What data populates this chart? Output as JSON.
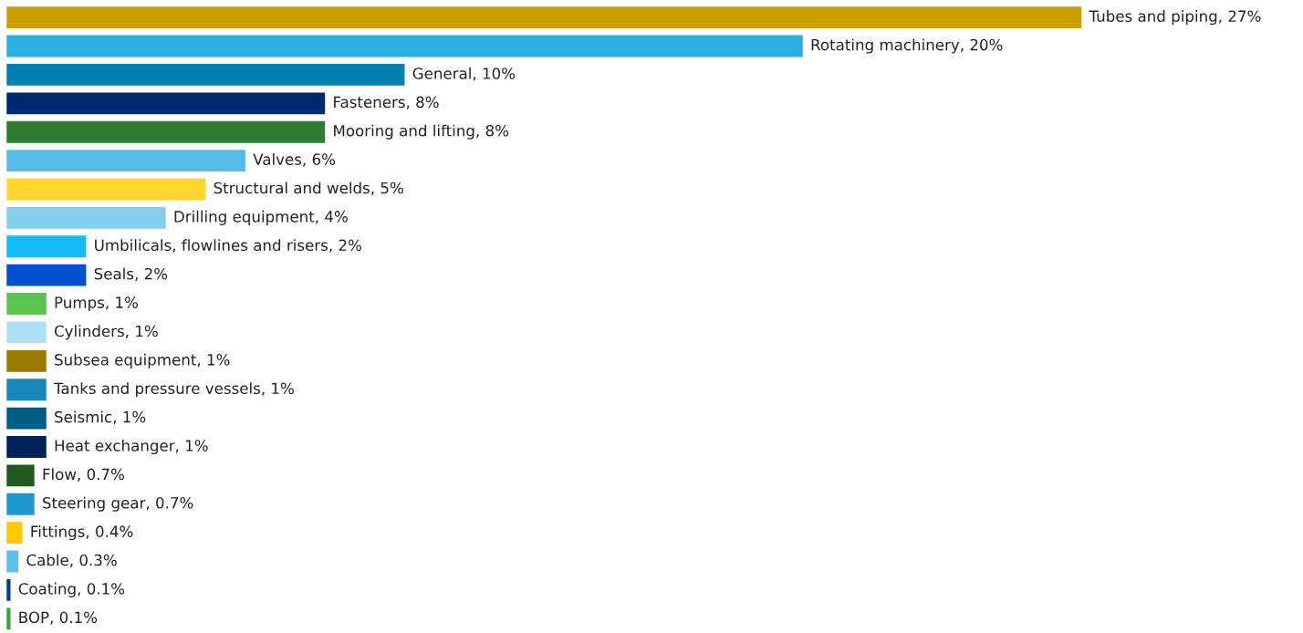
{
  "chart_data": {
    "type": "bar",
    "orientation": "horizontal",
    "categories": [
      null,
      null,
      null,
      null,
      null,
      null,
      null,
      null,
      null,
      null,
      null,
      null,
      null,
      null,
      null,
      null,
      null,
      null,
      null,
      null,
      null,
      null
    ],
    "values": [
      27,
      20,
      10,
      8,
      8,
      6,
      5,
      4,
      2,
      2,
      1,
      1,
      1,
      1,
      1,
      1,
      0.7,
      0.7,
      0.4,
      0.3,
      0.1,
      0.1
    ],
    "value_labels": [
      "Tubes and piping, 27%",
      "Rotating machinery, 20%",
      "General, 10%",
      "Fasteners, 8%",
      "Mooring and lifting, 8%",
      "Valves, 6%",
      "Structural and welds, 5%",
      "Drilling equipment, 4%",
      "Umbilicals, flowlines and risers, 2%",
      "Seals, 2%",
      "Pumps, 1%",
      "Cylinders, 1%",
      "Subsea equipment, 1%",
      "Tanks and pressure vessels, 1%",
      "Seismic, 1%",
      "Heat exchanger, 1%",
      "Flow, 0.7%",
      "Steering gear, 0.7%",
      "Fittings, 0.4%",
      "Cable, 0.3%",
      "Coating, 0.1%",
      "BOP, 0.1%"
    ],
    "colors": [
      "#c9a000",
      "#29afe0",
      "#0080b0",
      "#002a70",
      "#2e7d32",
      "#56bde8",
      "#ffd530",
      "#80d0ee",
      "#12bdf5",
      "#0050d0",
      "#5cc550",
      "#b0e0f5",
      "#9a7a00",
      "#1a88b8",
      "#005f88",
      "#002258",
      "#225a22",
      "#1e98cc",
      "#ffc800",
      "#5cc0e8",
      "#0a3a90",
      "#3aa040"
    ]
  }
}
